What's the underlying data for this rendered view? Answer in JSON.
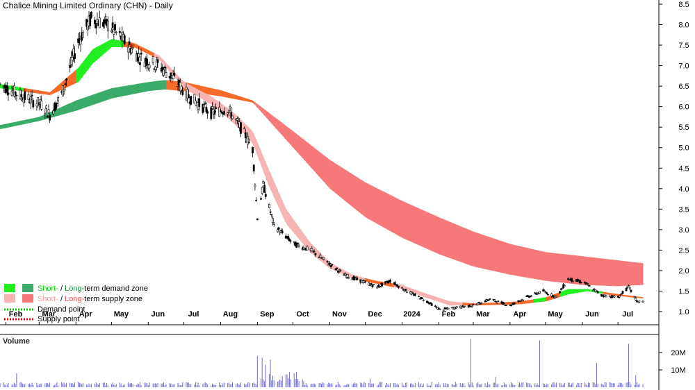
{
  "title": "Chalice Mining Limited Ordinary (CHN) - Daily",
  "volume_label": "Volume",
  "legend": {
    "demand_zone": {
      "short": "Short-",
      "sep": " / ",
      "long": "Long-",
      "rest": "term demand zone"
    },
    "supply_zone": {
      "short": "Short-",
      "sep": " / ",
      "long": "Long-",
      "rest": "term supply zone"
    },
    "demand_point": "Demand point",
    "supply_point": "Supply point"
  },
  "colors": {
    "short_demand": "#22ee22",
    "long_demand": "#3aab69",
    "short_supply": "#f7b4b4",
    "long_supply": "#f67878",
    "transition": "#f66a2a",
    "demand_point": "#00cc00",
    "supply_point": "#dd0000",
    "volume_bar": "#6d6dd6",
    "text_green": "#00dd00",
    "text_pink": "#f3a0a0",
    "text_red": "#ef5858"
  },
  "chart_data": {
    "type": "line",
    "ylim": [
      0.8,
      8.5
    ],
    "yticks": [
      "8.5",
      "8.0",
      "7.5",
      "7.0",
      "6.5",
      "6.0",
      "5.5",
      "5.0",
      "4.5",
      "4.0",
      "3.5",
      "3.0",
      "2.5",
      "2.0",
      "1.5",
      "1.0"
    ],
    "xticks": [
      "Feb",
      "Mar",
      "Apr",
      "May",
      "Jun",
      "Jul",
      "Aug",
      "Sep",
      "Oct",
      "Nov",
      "Dec",
      "2024",
      "Feb",
      "Mar",
      "Apr",
      "May",
      "Jun",
      "Jul"
    ],
    "volume_ticks": [
      "20M",
      "10M"
    ],
    "volume_ylim": [
      0,
      28
    ],
    "price": [
      [
        "2023-01-27",
        6.55
      ],
      [
        "2023-02-15",
        6.25
      ],
      [
        "2023-03-03",
        6.05
      ],
      [
        "2023-03-10",
        5.8
      ],
      [
        "2023-03-20",
        6.3
      ],
      [
        "2023-04-03",
        7.6
      ],
      [
        "2023-04-14",
        8.15
      ],
      [
        "2023-04-28",
        8.0
      ],
      [
        "2023-05-10",
        7.65
      ],
      [
        "2023-05-25",
        7.2
      ],
      [
        "2023-06-10",
        7.0
      ],
      [
        "2023-06-22",
        6.7
      ],
      [
        "2023-07-05",
        6.25
      ],
      [
        "2023-07-24",
        5.85
      ],
      [
        "2023-08-07",
        5.95
      ],
      [
        "2023-08-21",
        5.35
      ],
      [
        "2023-08-28",
        4.95
      ],
      [
        "2023-09-01",
        3.3
      ],
      [
        "2023-09-06",
        4.1
      ],
      [
        "2023-09-15",
        3.1
      ],
      [
        "2023-10-02",
        2.65
      ],
      [
        "2023-10-16",
        2.5
      ],
      [
        "2023-10-30",
        2.2
      ],
      [
        "2023-11-13",
        1.9
      ],
      [
        "2023-11-27",
        1.75
      ],
      [
        "2023-12-11",
        1.6
      ],
      [
        "2023-12-22",
        1.75
      ],
      [
        "2024-01-05",
        1.5
      ],
      [
        "2024-01-19",
        1.3
      ],
      [
        "2024-02-02",
        1.05
      ],
      [
        "2024-02-16",
        1.1
      ],
      [
        "2024-03-01",
        1.15
      ],
      [
        "2024-03-15",
        1.3
      ],
      [
        "2024-04-01",
        1.15
      ],
      [
        "2024-04-15",
        1.35
      ],
      [
        "2024-04-29",
        1.5
      ],
      [
        "2024-05-10",
        1.35
      ],
      [
        "2024-05-20",
        1.8
      ],
      [
        "2024-06-03",
        1.7
      ],
      [
        "2024-06-17",
        1.4
      ],
      [
        "2024-07-01",
        1.35
      ],
      [
        "2024-07-10",
        1.6
      ],
      [
        "2024-07-17",
        1.25
      ],
      [
        "2024-07-22",
        1.25
      ]
    ],
    "short_zone": {
      "upper": [
        [
          "2023-01-27",
          6.55
        ],
        [
          "2023-03-10",
          6.35
        ],
        [
          "2023-04-03",
          6.95
        ],
        [
          "2023-04-15",
          7.4
        ],
        [
          "2023-05-01",
          7.65
        ],
        [
          "2023-05-20",
          7.55
        ],
        [
          "2023-06-10",
          7.25
        ],
        [
          "2023-07-01",
          6.6
        ],
        [
          "2023-07-24",
          6.25
        ],
        [
          "2023-08-10",
          5.9
        ],
        [
          "2023-08-28",
          5.4
        ],
        [
          "2023-09-10",
          4.5
        ],
        [
          "2023-09-25",
          3.5
        ],
        [
          "2023-10-15",
          2.7
        ],
        [
          "2023-11-01",
          2.2
        ],
        [
          "2023-11-20",
          1.9
        ],
        [
          "2023-12-10",
          1.75
        ],
        [
          "2024-01-01",
          1.65
        ],
        [
          "2024-01-20",
          1.45
        ],
        [
          "2024-02-10",
          1.25
        ],
        [
          "2024-03-01",
          1.2
        ],
        [
          "2024-03-20",
          1.22
        ],
        [
          "2024-04-10",
          1.25
        ],
        [
          "2024-05-01",
          1.35
        ],
        [
          "2024-05-20",
          1.55
        ],
        [
          "2024-06-05",
          1.55
        ],
        [
          "2024-06-25",
          1.45
        ],
        [
          "2024-07-22",
          1.35
        ]
      ],
      "lower": [
        [
          "2023-01-27",
          6.45
        ],
        [
          "2023-03-10",
          6.28
        ],
        [
          "2023-04-03",
          6.6
        ],
        [
          "2023-04-15",
          7.05
        ],
        [
          "2023-05-01",
          7.45
        ],
        [
          "2023-05-20",
          7.45
        ],
        [
          "2023-06-10",
          7.15
        ],
        [
          "2023-07-01",
          6.45
        ],
        [
          "2023-07-24",
          6.05
        ],
        [
          "2023-08-10",
          5.65
        ],
        [
          "2023-08-28",
          5.1
        ],
        [
          "2023-09-10",
          4.1
        ],
        [
          "2023-09-25",
          3.15
        ],
        [
          "2023-10-15",
          2.45
        ],
        [
          "2023-11-01",
          2.05
        ],
        [
          "2023-11-20",
          1.8
        ],
        [
          "2023-12-10",
          1.68
        ],
        [
          "2024-01-01",
          1.55
        ],
        [
          "2024-01-20",
          1.35
        ],
        [
          "2024-02-10",
          1.15
        ],
        [
          "2024-03-01",
          1.15
        ],
        [
          "2024-03-20",
          1.16
        ],
        [
          "2024-04-10",
          1.18
        ],
        [
          "2024-05-01",
          1.25
        ],
        [
          "2024-05-20",
          1.42
        ],
        [
          "2024-06-05",
          1.5
        ],
        [
          "2024-06-25",
          1.4
        ],
        [
          "2024-07-22",
          1.32
        ]
      ],
      "state": [
        [
          "2023-01-27",
          "demand"
        ],
        [
          "2023-02-15",
          "transition"
        ],
        [
          "2023-04-01",
          "demand"
        ],
        [
          "2023-05-10",
          "transition"
        ],
        [
          "2023-06-05",
          "supply"
        ],
        [
          "2023-12-01",
          "transition"
        ],
        [
          "2023-12-25",
          "supply"
        ],
        [
          "2024-02-20",
          "transition"
        ],
        [
          "2024-04-20",
          "demand"
        ],
        [
          "2024-05-01",
          "transition"
        ],
        [
          "2024-05-12",
          "demand"
        ],
        [
          "2024-06-18",
          "transition"
        ]
      ]
    },
    "long_zone": {
      "upper": [
        [
          "2023-01-27",
          5.55
        ],
        [
          "2023-03-01",
          5.75
        ],
        [
          "2023-04-01",
          6.15
        ],
        [
          "2023-05-01",
          6.45
        ],
        [
          "2023-06-01",
          6.6
        ],
        [
          "2023-06-15",
          6.65
        ],
        [
          "2023-07-01",
          6.6
        ],
        [
          "2023-08-01",
          6.4
        ],
        [
          "2023-08-28",
          6.15
        ],
        [
          "2023-10-01",
          5.4
        ],
        [
          "2023-11-01",
          4.7
        ],
        [
          "2023-12-01",
          4.15
        ],
        [
          "2024-01-01",
          3.7
        ],
        [
          "2024-02-01",
          3.3
        ],
        [
          "2024-03-01",
          2.95
        ],
        [
          "2024-04-01",
          2.65
        ],
        [
          "2024-05-01",
          2.45
        ],
        [
          "2024-06-01",
          2.35
        ],
        [
          "2024-07-01",
          2.25
        ],
        [
          "2024-07-22",
          2.18
        ]
      ],
      "lower": [
        [
          "2023-01-27",
          5.45
        ],
        [
          "2023-03-01",
          5.65
        ],
        [
          "2023-04-01",
          5.9
        ],
        [
          "2023-05-01",
          6.2
        ],
        [
          "2023-06-01",
          6.38
        ],
        [
          "2023-06-15",
          6.42
        ],
        [
          "2023-07-01",
          6.38
        ],
        [
          "2023-08-01",
          6.25
        ],
        [
          "2023-08-28",
          6.1
        ],
        [
          "2023-10-01",
          5.0
        ],
        [
          "2023-11-01",
          4.0
        ],
        [
          "2023-12-01",
          3.3
        ],
        [
          "2024-01-01",
          2.8
        ],
        [
          "2024-02-01",
          2.4
        ],
        [
          "2024-03-01",
          2.1
        ],
        [
          "2024-04-01",
          1.9
        ],
        [
          "2024-05-01",
          1.75
        ],
        [
          "2024-06-01",
          1.65
        ],
        [
          "2024-07-01",
          1.62
        ],
        [
          "2024-07-22",
          1.65
        ]
      ],
      "state": [
        [
          "2023-01-27",
          "demand"
        ],
        [
          "2023-06-15",
          "transition"
        ],
        [
          "2023-08-28",
          "supply"
        ]
      ]
    },
    "volume": [
      [
        "2023-02-10",
        8
      ],
      [
        "2023-03-20",
        3
      ],
      [
        "2023-04-03",
        3
      ],
      [
        "2023-09-01",
        18
      ],
      [
        "2023-09-03",
        18
      ],
      [
        "2023-09-05",
        17
      ],
      [
        "2023-09-08",
        13
      ],
      [
        "2023-09-12",
        16
      ],
      [
        "2023-12-05",
        5
      ],
      [
        "2024-01-26",
        3
      ],
      [
        "2024-02-15",
        3
      ],
      [
        "2024-02-28",
        28
      ],
      [
        "2024-03-20",
        6
      ],
      [
        "2024-04-26",
        27
      ],
      [
        "2024-06-13",
        14
      ],
      [
        "2024-07-10",
        25
      ],
      [
        "2024-07-16",
        7
      ]
    ],
    "volume_baseline": 2
  }
}
